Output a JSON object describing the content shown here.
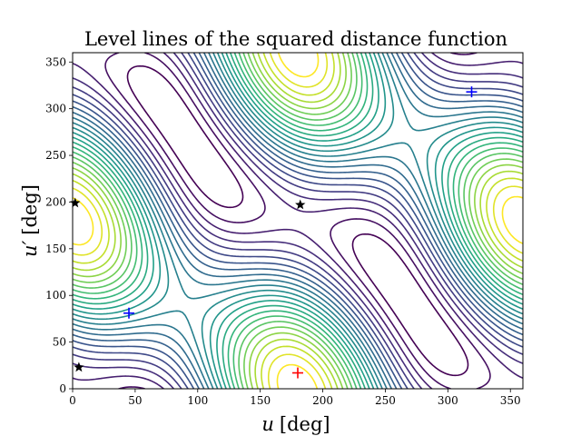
{
  "chart_data": {
    "type": "contour",
    "title": "Level lines of the squared distance function",
    "xlabel_var": "u",
    "xlabel_unit": "[deg]",
    "ylabel_var": "u′",
    "ylabel_unit": "[deg]",
    "xlim": [
      0,
      360
    ],
    "ylim": [
      0,
      360
    ],
    "xticks": [
      0,
      50,
      100,
      150,
      200,
      250,
      300,
      350
    ],
    "yticks": [
      0,
      50,
      100,
      150,
      200,
      250,
      300,
      350
    ],
    "colormap": "viridis",
    "grid": false,
    "markers": [
      {
        "name": "blue-plus-1",
        "symbol": "plus",
        "color": "#0000ff",
        "x": 45,
        "y": 81
      },
      {
        "name": "blue-plus-2",
        "symbol": "plus",
        "color": "#0000ff",
        "x": 319,
        "y": 318
      },
      {
        "name": "red-plus",
        "symbol": "plus",
        "color": "#ff0000",
        "x": 180,
        "y": 17
      },
      {
        "name": "black-star-1",
        "symbol": "star",
        "color": "#000000",
        "x": 2,
        "y": 199
      },
      {
        "name": "black-star-2",
        "symbol": "star",
        "color": "#000000",
        "x": 5,
        "y": 23
      },
      {
        "name": "black-star-3",
        "symbol": "star",
        "color": "#000000",
        "x": 182,
        "y": 197
      }
    ]
  }
}
